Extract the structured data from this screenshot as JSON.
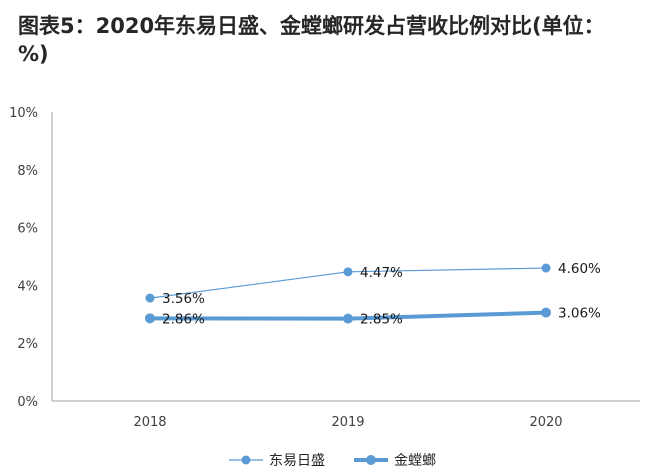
{
  "chart_data": {
    "type": "line",
    "title": "图表5：2020年东易日盛、金螳螂研发占营收比例对比(单位：%)",
    "x": [
      "2018",
      "2019",
      "2020"
    ],
    "y_ticks": [
      "0%",
      "2%",
      "4%",
      "6%",
      "8%",
      "10%"
    ],
    "ylim": [
      0,
      10
    ],
    "grid": false,
    "legend_position": "bottom",
    "series": [
      {
        "name": "东易日盛",
        "values": [
          3.56,
          4.47,
          4.6
        ],
        "labels": [
          "3.56%",
          "4.47%",
          "4.60%"
        ],
        "color": "#5b9bd5",
        "style": "thin"
      },
      {
        "name": "金螳螂",
        "values": [
          2.86,
          2.85,
          3.06
        ],
        "labels": [
          "2.86%",
          "2.85%",
          "3.06%"
        ],
        "color": "#5b9bd5",
        "style": "thick"
      }
    ]
  }
}
